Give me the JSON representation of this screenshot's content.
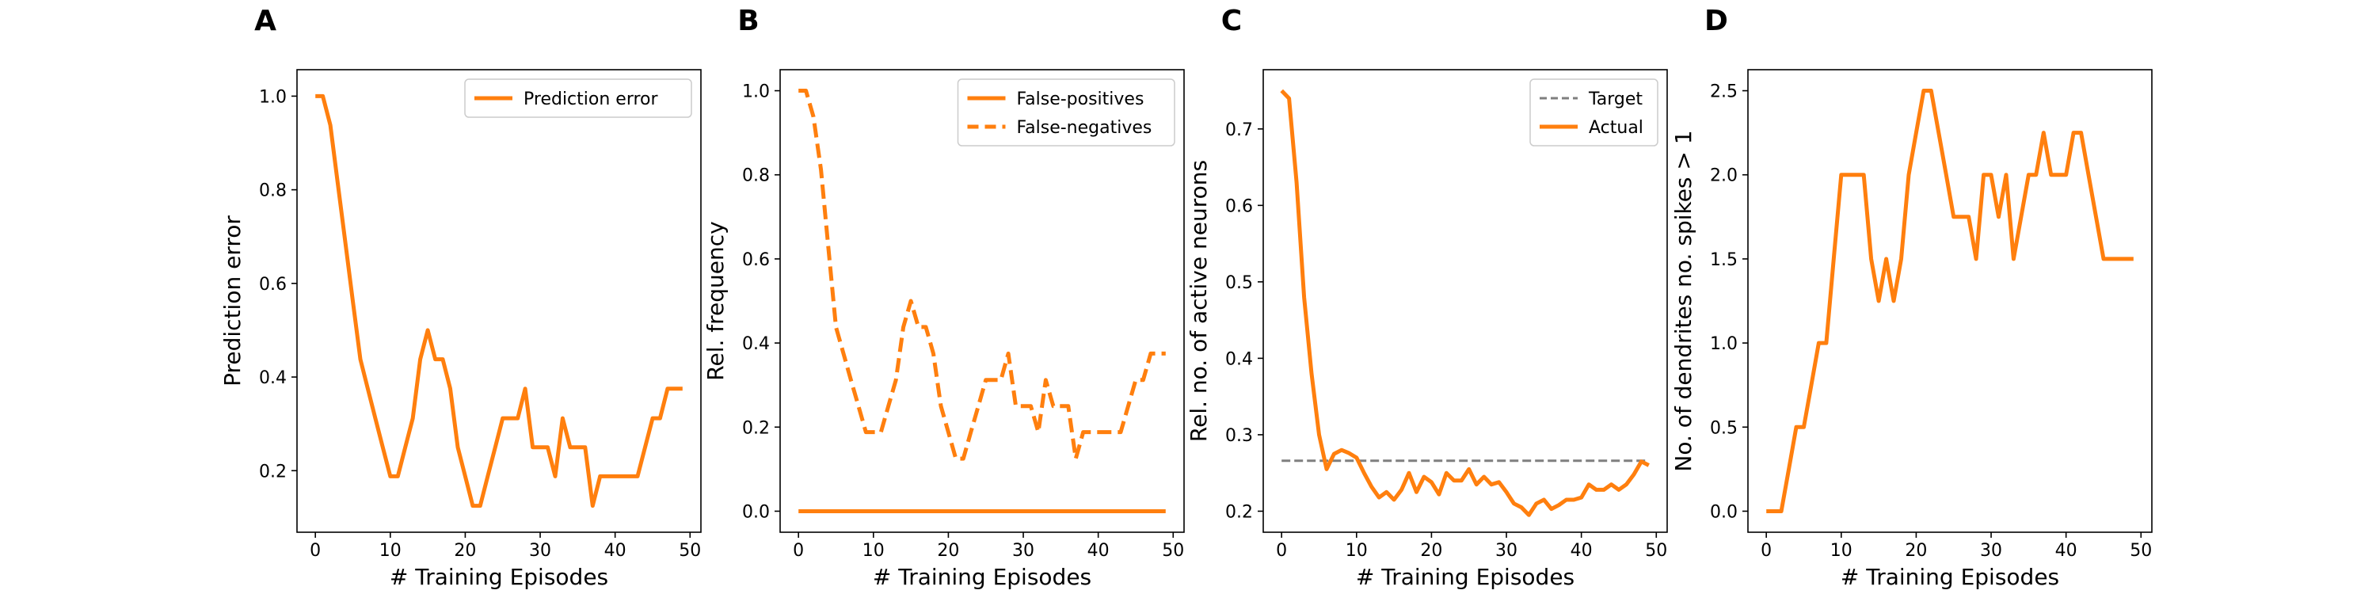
{
  "colors": {
    "series": "#ff7f0e",
    "target": "#7f7f7f",
    "axis": "#000000",
    "legend_border": "#cccccc"
  },
  "chart_data": [
    {
      "panel": "A",
      "type": "line",
      "xlabel": "# Training Episodes",
      "ylabel": "Prediction error",
      "xlim": [
        -2.45,
        51.45
      ],
      "ylim": [
        0.0685,
        1.0565
      ],
      "xticks": [
        0,
        10,
        20,
        30,
        40,
        50
      ],
      "yticks": [
        0.2,
        0.4,
        0.6,
        0.8,
        1.0
      ],
      "ytick_labels": [
        "0.2",
        "0.4",
        "0.6",
        "0.8",
        "1.0"
      ],
      "legend": "top-right",
      "series": [
        {
          "name": "Prediction error",
          "style": "solid",
          "x": [
            0,
            1,
            2,
            3,
            4,
            5,
            6,
            7,
            8,
            9,
            10,
            11,
            12,
            13,
            14,
            15,
            16,
            17,
            18,
            19,
            20,
            21,
            22,
            23,
            24,
            25,
            26,
            27,
            28,
            29,
            30,
            31,
            32,
            33,
            34,
            35,
            36,
            37,
            38,
            39,
            40,
            41,
            42,
            43,
            44,
            45,
            46,
            47,
            48,
            49
          ],
          "y": [
            1.0,
            1.0,
            0.938,
            0.812,
            0.688,
            0.562,
            0.438,
            0.375,
            0.312,
            0.25,
            0.188,
            0.188,
            0.25,
            0.312,
            0.438,
            0.5,
            0.438,
            0.438,
            0.375,
            0.25,
            0.188,
            0.125,
            0.125,
            0.188,
            0.25,
            0.312,
            0.312,
            0.312,
            0.375,
            0.25,
            0.25,
            0.25,
            0.188,
            0.312,
            0.25,
            0.25,
            0.25,
            0.125,
            0.188,
            0.188,
            0.188,
            0.188,
            0.188,
            0.188,
            0.25,
            0.312,
            0.312,
            0.375,
            0.375,
            0.375
          ]
        }
      ]
    },
    {
      "panel": "B",
      "type": "line",
      "xlabel": "# Training Episodes",
      "ylabel": "Rel. frequency",
      "xlim": [
        -2.45,
        51.45
      ],
      "ylim": [
        -0.05,
        1.05
      ],
      "xticks": [
        0,
        10,
        20,
        30,
        40,
        50
      ],
      "yticks": [
        0.0,
        0.2,
        0.4,
        0.6,
        0.8,
        1.0
      ],
      "ytick_labels": [
        "0.0",
        "0.2",
        "0.4",
        "0.6",
        "0.8",
        "1.0"
      ],
      "legend": "top-right",
      "series": [
        {
          "name": "False-positives",
          "style": "solid",
          "x": [
            0,
            1,
            2,
            3,
            4,
            5,
            6,
            7,
            8,
            9,
            10,
            11,
            12,
            13,
            14,
            15,
            16,
            17,
            18,
            19,
            20,
            21,
            22,
            23,
            24,
            25,
            26,
            27,
            28,
            29,
            30,
            31,
            32,
            33,
            34,
            35,
            36,
            37,
            38,
            39,
            40,
            41,
            42,
            43,
            44,
            45,
            46,
            47,
            48,
            49
          ],
          "y": [
            0,
            0,
            0,
            0,
            0,
            0,
            0,
            0,
            0,
            0,
            0,
            0,
            0,
            0,
            0,
            0,
            0,
            0,
            0,
            0,
            0,
            0,
            0,
            0,
            0,
            0,
            0,
            0,
            0,
            0,
            0,
            0,
            0,
            0,
            0,
            0,
            0,
            0,
            0,
            0,
            0,
            0,
            0,
            0,
            0,
            0,
            0,
            0,
            0,
            0
          ]
        },
        {
          "name": "False-negatives",
          "style": "dashed",
          "x": [
            0,
            1,
            2,
            3,
            4,
            5,
            6,
            7,
            8,
            9,
            10,
            11,
            12,
            13,
            14,
            15,
            16,
            17,
            18,
            19,
            20,
            21,
            22,
            23,
            24,
            25,
            26,
            27,
            28,
            29,
            30,
            31,
            32,
            33,
            34,
            35,
            36,
            37,
            38,
            39,
            40,
            41,
            42,
            43,
            44,
            45,
            46,
            47,
            48,
            49
          ],
          "y": [
            1.0,
            1.0,
            0.938,
            0.812,
            0.625,
            0.438,
            0.375,
            0.312,
            0.25,
            0.188,
            0.188,
            0.188,
            0.25,
            0.312,
            0.438,
            0.5,
            0.438,
            0.438,
            0.375,
            0.25,
            0.188,
            0.125,
            0.125,
            0.188,
            0.25,
            0.312,
            0.312,
            0.312,
            0.375,
            0.25,
            0.25,
            0.25,
            0.188,
            0.312,
            0.25,
            0.25,
            0.25,
            0.125,
            0.188,
            0.188,
            0.188,
            0.188,
            0.188,
            0.188,
            0.25,
            0.312,
            0.312,
            0.375,
            0.375,
            0.375
          ]
        }
      ]
    },
    {
      "panel": "C",
      "type": "line",
      "xlabel": "# Training Episodes",
      "ylabel": "Rel. no. of active neurons",
      "xlim": [
        -2.45,
        51.45
      ],
      "ylim": [
        0.1725,
        0.7775
      ],
      "xticks": [
        0,
        10,
        20,
        30,
        40,
        50
      ],
      "yticks": [
        0.2,
        0.3,
        0.4,
        0.5,
        0.6,
        0.7
      ],
      "ytick_labels": [
        "0.2",
        "0.3",
        "0.4",
        "0.5",
        "0.6",
        "0.7"
      ],
      "legend": "top-right",
      "series": [
        {
          "name": "Target",
          "style": "dashed-gray",
          "x": [
            0,
            49
          ],
          "y": [
            0.266,
            0.266
          ]
        },
        {
          "name": "Actual",
          "style": "solid",
          "x": [
            0,
            1,
            2,
            3,
            4,
            5,
            6,
            7,
            8,
            9,
            10,
            11,
            12,
            13,
            14,
            15,
            16,
            17,
            18,
            19,
            20,
            21,
            22,
            23,
            24,
            25,
            26,
            27,
            28,
            29,
            30,
            31,
            32,
            33,
            34,
            35,
            36,
            37,
            38,
            39,
            40,
            41,
            42,
            43,
            44,
            45,
            46,
            47,
            48,
            49
          ],
          "y": [
            0.75,
            0.74,
            0.63,
            0.48,
            0.38,
            0.3,
            0.255,
            0.275,
            0.28,
            0.276,
            0.27,
            0.25,
            0.232,
            0.218,
            0.225,
            0.215,
            0.228,
            0.25,
            0.225,
            0.245,
            0.238,
            0.222,
            0.25,
            0.24,
            0.24,
            0.255,
            0.235,
            0.245,
            0.235,
            0.238,
            0.225,
            0.21,
            0.205,
            0.195,
            0.21,
            0.215,
            0.203,
            0.208,
            0.215,
            0.215,
            0.218,
            0.235,
            0.228,
            0.228,
            0.235,
            0.228,
            0.235,
            0.248,
            0.265,
            0.26
          ]
        }
      ]
    },
    {
      "panel": "D",
      "type": "line",
      "xlabel": "# Training Episodes",
      "ylabel": "No. of dendrites no. spikes > 1",
      "xlim": [
        -2.45,
        51.45
      ],
      "ylim": [
        -0.125,
        2.625
      ],
      "xticks": [
        0,
        10,
        20,
        30,
        40,
        50
      ],
      "yticks": [
        0.0,
        0.5,
        1.0,
        1.5,
        2.0,
        2.5
      ],
      "ytick_labels": [
        "0.0",
        "0.5",
        "1.0",
        "1.5",
        "2.0",
        "2.5"
      ],
      "legend": "none",
      "series": [
        {
          "style": "solid",
          "x": [
            0,
            1,
            2,
            3,
            4,
            5,
            6,
            7,
            8,
            9,
            10,
            11,
            12,
            13,
            14,
            15,
            16,
            17,
            18,
            19,
            20,
            21,
            22,
            23,
            24,
            25,
            26,
            27,
            28,
            29,
            30,
            31,
            32,
            33,
            34,
            35,
            36,
            37,
            38,
            39,
            40,
            41,
            42,
            43,
            44,
            45,
            46,
            47,
            48,
            49
          ],
          "y": [
            0,
            0,
            0,
            0.25,
            0.5,
            0.5,
            0.75,
            1.0,
            1.0,
            1.5,
            2.0,
            2.0,
            2.0,
            2.0,
            1.5,
            1.25,
            1.5,
            1.25,
            1.5,
            2.0,
            2.25,
            2.5,
            2.5,
            2.25,
            2.0,
            1.75,
            1.75,
            1.75,
            1.5,
            2.0,
            2.0,
            1.75,
            2.0,
            1.5,
            1.75,
            2.0,
            2.0,
            2.25,
            2.0,
            2.0,
            2.0,
            2.25,
            2.25,
            2.0,
            1.75,
            1.5,
            1.5,
            1.5,
            1.5,
            1.5
          ]
        }
      ]
    }
  ]
}
